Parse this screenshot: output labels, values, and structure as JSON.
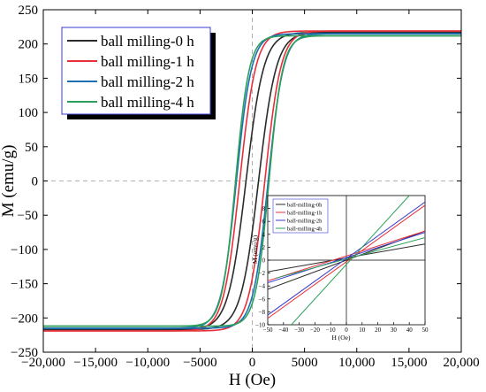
{
  "chart_data": [
    {
      "type": "line",
      "title": "",
      "xlabel": "H (Oe)",
      "ylabel": "M (emu/g)",
      "xlim": [
        -20000,
        20000
      ],
      "ylim": [
        -250,
        250
      ],
      "xticks": [
        -20000,
        -15000,
        -10000,
        -5000,
        0,
        5000,
        10000,
        15000,
        20000
      ],
      "xtick_labels": [
        "−20,000",
        "−15,000",
        "−10,000",
        "−5000",
        "0",
        "5000",
        "10,000",
        "15,000",
        "20,000"
      ],
      "yticks": [
        -250,
        -200,
        -150,
        -100,
        -50,
        0,
        50,
        100,
        150,
        200,
        250
      ],
      "ytick_labels": [
        "−250",
        "−200",
        "−150",
        "−100",
        "−50",
        "0",
        "50",
        "100",
        "150",
        "200",
        "250"
      ],
      "legend_position": "top-left",
      "series": [
        {
          "name": "ball milling-0 h",
          "color": "#2b2b2b",
          "ms": 217,
          "hk": 1700,
          "hc": 15
        },
        {
          "name": "ball milling-1 h",
          "color": "#e8303a",
          "ms": 219,
          "hk": 1550,
          "hc": 30
        },
        {
          "name": "ball milling-2 h",
          "color": "#1f6fb5",
          "ms": 215,
          "hk": 1450,
          "hc": 38
        },
        {
          "name": "ball milling-4 h",
          "color": "#2ca05a",
          "ms": 212,
          "hk": 1300,
          "hc": 40
        }
      ]
    },
    {
      "type": "line",
      "title": "",
      "xlabel": "H (Oe)",
      "ylabel": "M (emu/g)",
      "xlim": [
        -50,
        50
      ],
      "ylim": [
        -10,
        10
      ],
      "xticks": [
        -50,
        -40,
        -30,
        -20,
        -10,
        0,
        10,
        20,
        30,
        40,
        50
      ],
      "xtick_labels": [
        "−50",
        "−40",
        "−30",
        "−20",
        "−10",
        "0",
        "10",
        "20",
        "30",
        "40",
        "50"
      ],
      "yticks": [
        -10,
        -8,
        -6,
        -4,
        -2,
        0,
        2,
        4,
        6,
        8
      ],
      "ytick_labels": [
        "−10",
        "−8",
        "−6",
        "−4",
        "−2",
        "0",
        "2",
        "4",
        "6",
        "8"
      ],
      "legend_position": "top-left",
      "series": [
        {
          "name": "ball-milling-0h",
          "color": "#2b2b2b",
          "branches": [
            {
              "x": [
                -50,
                50
              ],
              "y": [
                -4.5,
                4.5
              ]
            },
            {
              "x": [
                -50,
                50
              ],
              "y": [
                -1.8,
                2.5
              ]
            }
          ]
        },
        {
          "name": "ball-milling-1h",
          "color": "#e8303a",
          "branches": [
            {
              "x": [
                -50,
                50
              ],
              "y": [
                -9.0,
                8.5
              ]
            },
            {
              "x": [
                -50,
                50
              ],
              "y": [
                -3.2,
                4.5
              ]
            }
          ]
        },
        {
          "name": "ball-milling-2h",
          "color": "#3a3ad0",
          "branches": [
            {
              "x": [
                -50,
                50
              ],
              "y": [
                -8.5,
                9.0
              ]
            },
            {
              "x": [
                -50,
                50
              ],
              "y": [
                -3.5,
                4.3
              ]
            }
          ]
        },
        {
          "name": "ball-milling-4h",
          "color": "#2ca05a",
          "branches": [
            {
              "x": [
                -35,
                40
              ],
              "y": [
                -10,
                10
              ]
            },
            {
              "x": [
                -45,
                50
              ],
              "y": [
                -2.8,
                3.5
              ]
            }
          ]
        }
      ]
    }
  ]
}
